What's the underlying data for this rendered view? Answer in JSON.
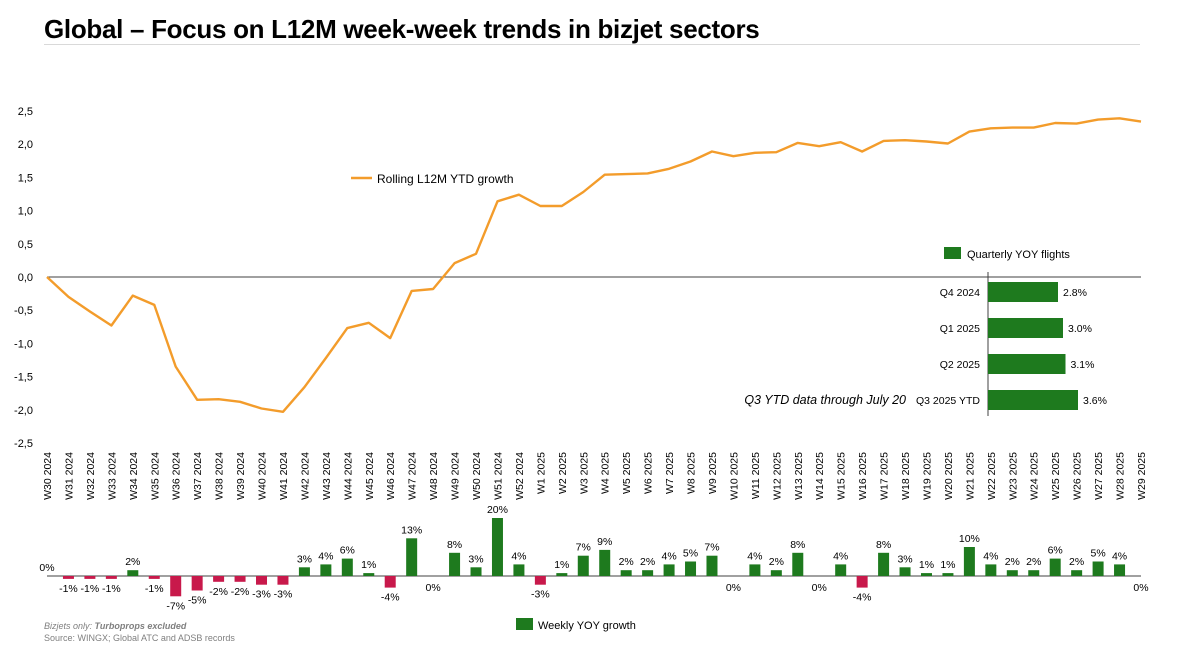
{
  "page": {
    "title": "Global – Focus on L12M week-week trends in bizjet sectors",
    "footnote_plain": "Bizjets only: ",
    "footnote_bold": "Turboprops excluded",
    "source": "Source: WINGX; Global ATC and ADSB records"
  },
  "colors": {
    "line": "#f39c2b",
    "positive": "#1e7a1e",
    "negative": "#c8194b"
  },
  "chart_data": [
    {
      "type": "line",
      "series": [
        {
          "name": "Rolling L12M YTD growth",
          "values": [
            0.0,
            -0.3,
            -0.52,
            -0.73,
            -0.28,
            -0.42,
            -1.35,
            -1.85,
            -1.84,
            -1.88,
            -1.98,
            -2.03,
            -1.66,
            -1.22,
            -0.77,
            -0.69,
            -0.92,
            -0.21,
            -0.18,
            0.21,
            0.35,
            1.14,
            1.24,
            1.07,
            1.07,
            1.28,
            1.54,
            1.55,
            1.56,
            1.63,
            1.74,
            1.89,
            1.82,
            1.87,
            1.88,
            2.02,
            1.97,
            2.03,
            1.89,
            2.05,
            2.06,
            2.04,
            2.01,
            2.19,
            2.24,
            2.25,
            2.25,
            2.32,
            2.31,
            2.37,
            2.39,
            2.34
          ]
        }
      ],
      "categories": [
        "W30 2024",
        "W31 2024",
        "W32 2024",
        "W33 2024",
        "W34 2024",
        "W35 2024",
        "W36 2024",
        "W37 2024",
        "W38 2024",
        "W39 2024",
        "W40 2024",
        "W41 2024",
        "W42 2024",
        "W43 2024",
        "W44 2024",
        "W45 2024",
        "W46 2024",
        "W47 2024",
        "W48 2024",
        "W49 2024",
        "W50 2024",
        "W51 2024",
        "W52 2024",
        "W1 2025",
        "W2 2025",
        "W3 2025",
        "W4 2025",
        "W5 2025",
        "W6 2025",
        "W7 2025",
        "W8 2025",
        "W9 2025",
        "W10 2025",
        "W11 2025",
        "W12 2025",
        "W13 2025",
        "W14 2025",
        "W15 2025",
        "W16 2025",
        "W17 2025",
        "W18 2025",
        "W19 2025",
        "W20 2025",
        "W21 2025",
        "W22 2025",
        "W23 2025",
        "W24 2025",
        "W25 2025",
        "W26 2025",
        "W27 2025",
        "W28 2025",
        "W29 2025"
      ],
      "yticks": [
        "2,5",
        "2,0",
        "1,5",
        "1,0",
        "0,5",
        "0,0",
        "-0,5",
        "-1,0",
        "-1,5",
        "-2,0",
        "-2,5"
      ],
      "ylim": [
        -2.5,
        2.5
      ],
      "legend": "center-left"
    },
    {
      "type": "bar",
      "orientation": "horizontal",
      "legend": "Quarterly YOY flights",
      "categories": [
        "Q4 2024",
        "Q1 2025",
        "Q2 2025",
        "Q3 2025 YTD"
      ],
      "values": [
        2.8,
        3.0,
        3.1,
        3.6
      ],
      "labels": [
        "2.8%",
        "3.0%",
        "3.1%",
        "3.6%"
      ],
      "annotation": "Q3 YTD data through July 20"
    },
    {
      "type": "bar",
      "legend": "Weekly YOY growth",
      "values": [
        0,
        -1,
        -1,
        -1,
        2,
        -1,
        -7,
        -5,
        -2,
        -2,
        -3,
        -3,
        3,
        4,
        6,
        1,
        -4,
        13,
        0,
        8,
        3,
        20,
        4,
        -3,
        1,
        7,
        9,
        2,
        2,
        4,
        5,
        7,
        0,
        4,
        2,
        8,
        0,
        4,
        -4,
        8,
        3,
        1,
        1,
        10,
        4,
        2,
        2,
        6,
        2,
        5,
        4,
        0
      ],
      "labels": [
        "0%",
        "-1%",
        "-1%",
        "-1%",
        "2%",
        "-1%",
        "-7%",
        "-5%",
        "-2%",
        "-2%",
        "-3%",
        "-3%",
        "3%",
        "4%",
        "6%",
        "1%",
        "-4%",
        "13%",
        "0%",
        "8%",
        "3%",
        "20%",
        "4%",
        "-3%",
        "1%",
        "7%",
        "9%",
        "2%",
        "2%",
        "4%",
        "5%",
        "7%",
        "0%",
        "4%",
        "2%",
        "8%",
        "0%",
        "4%",
        "-4%",
        "8%",
        "3%",
        "1%",
        "1%",
        "10%",
        "4%",
        "2%",
        "2%",
        "6%",
        "2%",
        "5%",
        "4%",
        "0%"
      ]
    }
  ]
}
